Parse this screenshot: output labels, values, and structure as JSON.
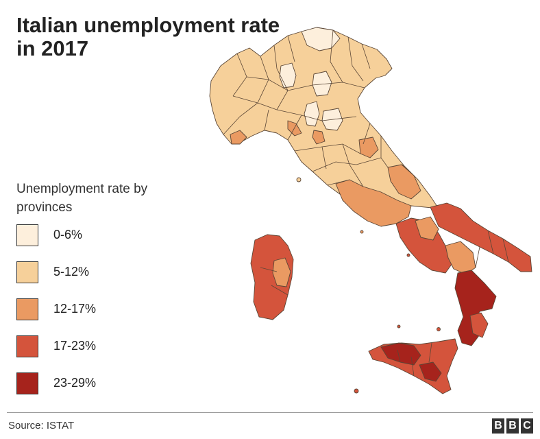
{
  "title": "Italian unemployment rate in 2017",
  "legend": {
    "title": "Unemployment rate by provinces",
    "items": [
      {
        "label": "0-6%",
        "color": "#fdefdc"
      },
      {
        "label": "5-12%",
        "color": "#f6d09a"
      },
      {
        "label": "12-17%",
        "color": "#ea9a62"
      },
      {
        "label": "17-23%",
        "color": "#d4543c"
      },
      {
        "label": "23-29%",
        "color": "#a6231c"
      }
    ]
  },
  "source": "Source: ISTAT",
  "logo": {
    "letters": [
      "B",
      "B",
      "C"
    ]
  },
  "colors": {
    "band_0_6": "#fdefdc",
    "band_5_12": "#f6d09a",
    "band_12_17": "#ea9a62",
    "band_17_23": "#d4543c",
    "band_23_29": "#a6231c"
  }
}
